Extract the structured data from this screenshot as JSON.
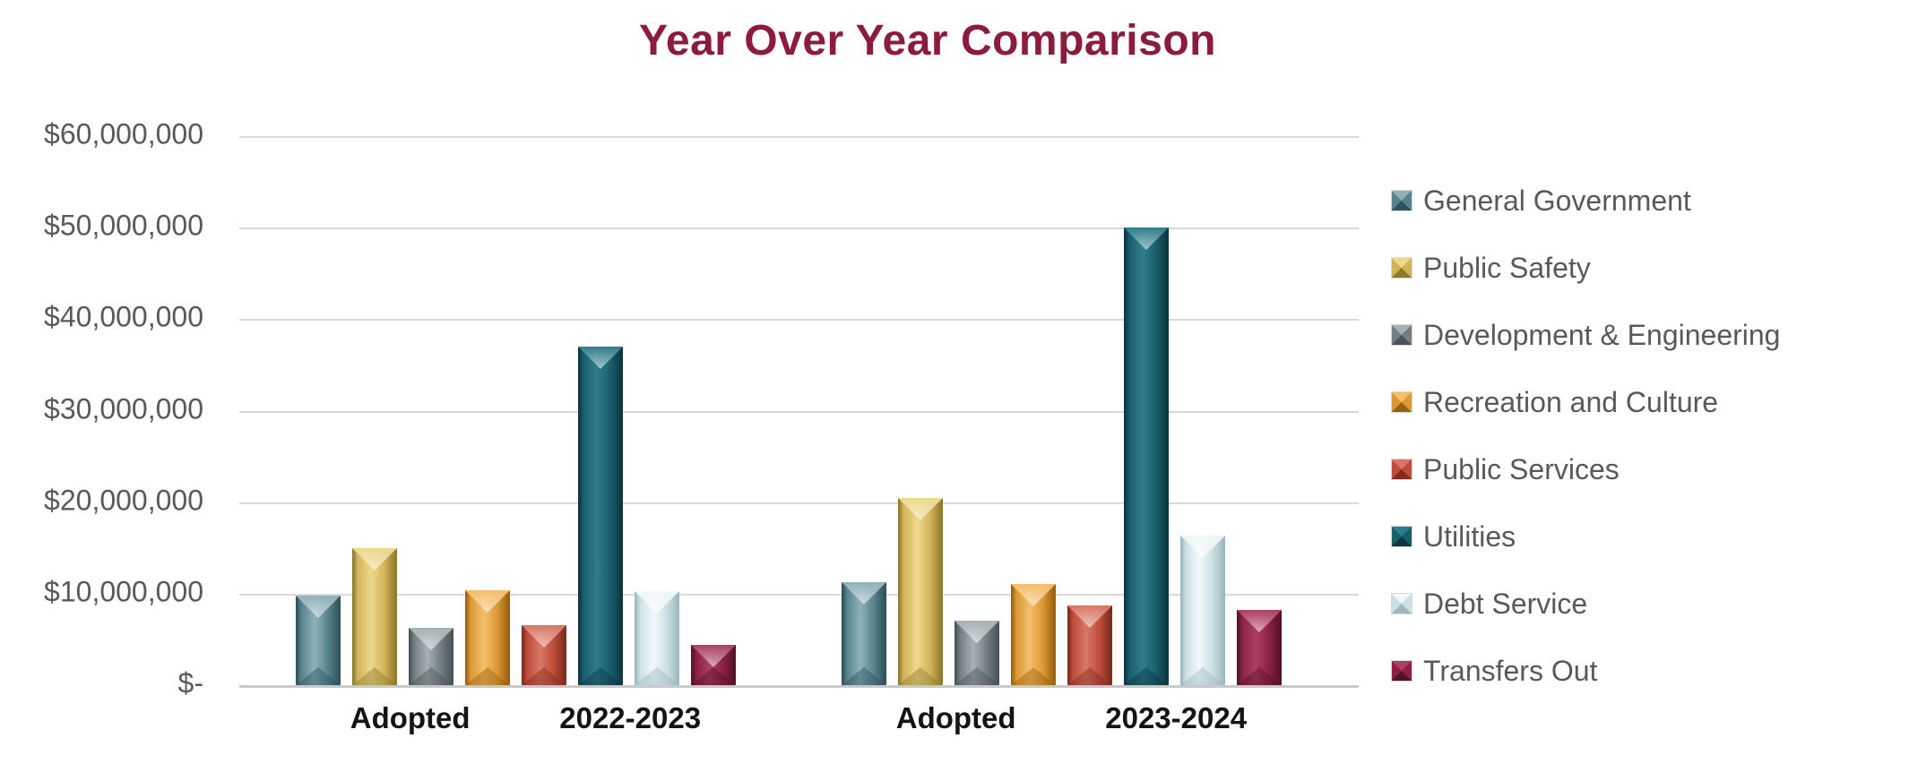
{
  "title": "Year Over Year Comparison",
  "title_color": "#8B1C3E",
  "axis_text_color": "#595959",
  "gridline_color": "#D9D9D9",
  "chart_data": {
    "type": "bar",
    "title": "Year Over Year Comparison",
    "categories": [
      "Adopted 2022-2023",
      "Adopted 2023-2024"
    ],
    "category_labels": [
      [
        "Adopted",
        "2022-2023"
      ],
      [
        "Adopted",
        "2023-2024"
      ]
    ],
    "y_ticks": [
      "$60,000,000",
      "$50,000,000",
      "$40,000,000",
      "$30,000,000",
      "$20,000,000",
      "$10,000,000",
      "$-"
    ],
    "y_max": 60000000,
    "y_min": 0,
    "grid": true,
    "legend_position": "right",
    "series": [
      {
        "name": "General Government",
        "values": [
          9800000,
          11300000
        ],
        "color": "#56828C",
        "light": "#8FB2B9",
        "dark": "#2D535C"
      },
      {
        "name": "Public Safety",
        "values": [
          15000000,
          20500000
        ],
        "color": "#D2B458",
        "light": "#EDD88C",
        "dark": "#8E7930"
      },
      {
        "name": "Development & Engineering",
        "values": [
          6300000,
          7000000
        ],
        "color": "#727E82",
        "light": "#A7B1B3",
        "dark": "#495457"
      },
      {
        "name": "Recreation and Culture",
        "values": [
          10400000,
          11100000
        ],
        "color": "#DB9834",
        "light": "#F2BF6B",
        "dark": "#99620F"
      },
      {
        "name": "Public Services",
        "values": [
          6600000,
          8700000
        ],
        "color": "#BE4C3B",
        "light": "#D97765",
        "dark": "#7E2D1E"
      },
      {
        "name": "Utilities",
        "values": [
          37000000,
          50000000
        ],
        "color": "#185F6D",
        "light": "#2F7D8C",
        "dark": "#0C3640"
      },
      {
        "name": "Debt Service",
        "values": [
          10300000,
          16300000
        ],
        "color": "#CCE0E3",
        "light": "#F2F8F9",
        "dark": "#9CB9BE"
      },
      {
        "name": "Transfers Out",
        "values": [
          4400000,
          8200000
        ],
        "color": "#8A2144",
        "light": "#AC3F63",
        "dark": "#53132A"
      }
    ]
  }
}
